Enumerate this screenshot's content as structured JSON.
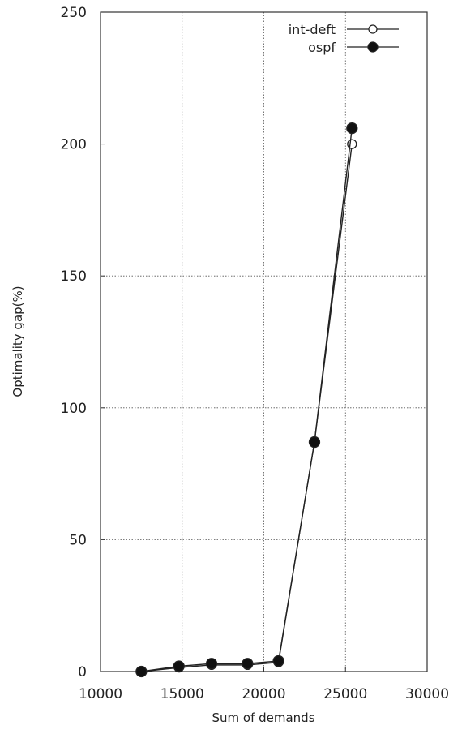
{
  "chart_data": {
    "type": "line",
    "xlabel": "Sum of demands",
    "ylabel": "Optimality gap(%)",
    "xlim": [
      10000,
      30000
    ],
    "ylim": [
      0,
      250
    ],
    "x_ticks": [
      "10000",
      "15000",
      "20000",
      "25000",
      "30000"
    ],
    "y_ticks": [
      "0",
      "50",
      "100",
      "150",
      "200",
      "250"
    ],
    "grid": true,
    "legend_position": "top-right",
    "series": [
      {
        "name": "int-deft",
        "marker": "open-circle",
        "x": [
          12500,
          14800,
          16800,
          19000,
          20900,
          23100,
          25400
        ],
        "y": [
          0,
          1.5,
          2.5,
          2.5,
          3.5,
          87,
          200
        ]
      },
      {
        "name": "ospf",
        "marker": "filled-circle",
        "x": [
          12500,
          14800,
          16800,
          19000,
          20900,
          23100,
          25400
        ],
        "y": [
          0,
          2,
          3,
          3,
          4,
          87,
          206
        ]
      }
    ]
  }
}
